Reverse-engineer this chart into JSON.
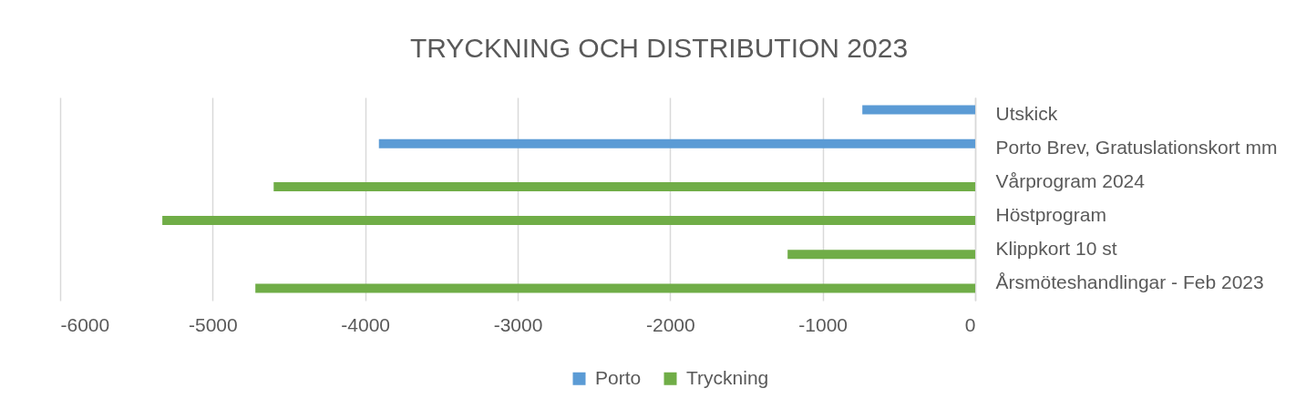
{
  "chart_data": {
    "type": "bar",
    "orientation": "horizontal",
    "title": "TRYCKNING OCH DISTRIBUTION 2023",
    "categories": [
      "Utskick",
      "Porto Brev, Gratuslationskort mm",
      "Vårprogram 2024",
      "Höstprogram",
      "Klippkort 10 st",
      "Årsmöteshandlingar - Feb 2023"
    ],
    "series": [
      {
        "name": "Porto",
        "color": "#5b9bd5",
        "values": [
          -740,
          -3910,
          null,
          null,
          null,
          null
        ]
      },
      {
        "name": "Tryckning",
        "color": "#70ad47",
        "values": [
          null,
          null,
          -4600,
          -5330,
          -1230,
          -4720
        ]
      }
    ],
    "xlim": [
      -6000,
      0
    ],
    "xticks": [
      -6000,
      -5000,
      -4000,
      -3000,
      -2000,
      -1000,
      0
    ],
    "grid": "x",
    "legend": "bottom"
  }
}
